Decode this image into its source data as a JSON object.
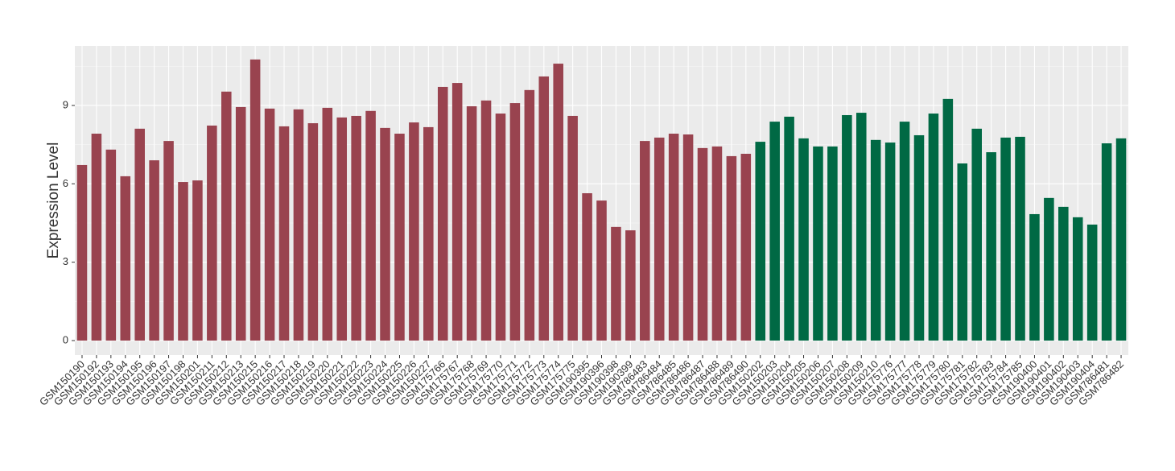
{
  "chart_data": {
    "type": "bar",
    "y_label": "Expression Level",
    "categories": [
      "GSM150190",
      "GSM150192",
      "GSM150193",
      "GSM150194",
      "GSM150195",
      "GSM150196",
      "GSM150197",
      "GSM150198",
      "GSM150201",
      "GSM150211",
      "GSM150212",
      "GSM150213",
      "GSM150215",
      "GSM150216",
      "GSM150217",
      "GSM150218",
      "GSM150219",
      "GSM150220",
      "GSM150221",
      "GSM150222",
      "GSM150223",
      "GSM150224",
      "GSM150225",
      "GSM150226",
      "GSM150227",
      "GSM175766",
      "GSM175767",
      "GSM175768",
      "GSM175769",
      "GSM175770",
      "GSM175771",
      "GSM175772",
      "GSM175773",
      "GSM175774",
      "GSM175775",
      "GSM190395",
      "GSM190396",
      "GSM190398",
      "GSM190399",
      "GSM786483",
      "GSM786484",
      "GSM786485",
      "GSM786486",
      "GSM786487",
      "GSM786488",
      "GSM786489",
      "GSM786490",
      "GSM150202",
      "GSM150203",
      "GSM150204",
      "GSM150205",
      "GSM150206",
      "GSM150207",
      "GSM150208",
      "GSM150209",
      "GSM150210",
      "GSM175776",
      "GSM175777",
      "GSM175778",
      "GSM175779",
      "GSM175780",
      "GSM175781",
      "GSM175782",
      "GSM175783",
      "GSM175784",
      "GSM175785",
      "GSM190400",
      "GSM190401",
      "GSM190402",
      "GSM190403",
      "GSM190404",
      "GSM786481",
      "GSM786482"
    ],
    "series": [
      {
        "color": "#99434f",
        "values": [
          6.72,
          7.92,
          7.31,
          6.29,
          8.11,
          6.9,
          7.64,
          6.07,
          6.13,
          8.23,
          9.53,
          8.94,
          10.76,
          8.88,
          8.2,
          8.85,
          8.32,
          8.91,
          8.54,
          8.6,
          8.79,
          8.14,
          7.92,
          8.35,
          8.17,
          9.71,
          9.86,
          8.97,
          9.19,
          8.69,
          9.09,
          9.59,
          10.11,
          10.6,
          8.6,
          5.64,
          5.36,
          4.35,
          4.22,
          7.64,
          7.77,
          7.92,
          7.89,
          7.37,
          7.43,
          7.06,
          7.15,
          null,
          null,
          null,
          null,
          null,
          null,
          null,
          null,
          null,
          null,
          null,
          null,
          null,
          null,
          null,
          null,
          null,
          null,
          null,
          null,
          null,
          null,
          null,
          null,
          null,
          null
        ]
      },
      {
        "color": "#006944",
        "values": [
          null,
          null,
          null,
          null,
          null,
          null,
          null,
          null,
          null,
          null,
          null,
          null,
          null,
          null,
          null,
          null,
          null,
          null,
          null,
          null,
          null,
          null,
          null,
          null,
          null,
          null,
          null,
          null,
          null,
          null,
          null,
          null,
          null,
          null,
          null,
          null,
          null,
          null,
          null,
          null,
          null,
          null,
          null,
          null,
          null,
          null,
          null,
          7.61,
          8.38,
          8.57,
          7.74,
          7.43,
          7.43,
          8.63,
          8.72,
          7.68,
          7.58,
          8.38,
          7.86,
          8.69,
          9.25,
          6.78,
          8.11,
          7.21,
          7.77,
          7.8,
          4.84,
          5.46,
          5.12,
          4.72,
          4.44,
          7.55,
          7.74
        ]
      }
    ],
    "ylim": [
      -0.555,
      11.28
    ],
    "yticks": [
      0,
      3,
      6,
      9
    ],
    "grid": true
  }
}
